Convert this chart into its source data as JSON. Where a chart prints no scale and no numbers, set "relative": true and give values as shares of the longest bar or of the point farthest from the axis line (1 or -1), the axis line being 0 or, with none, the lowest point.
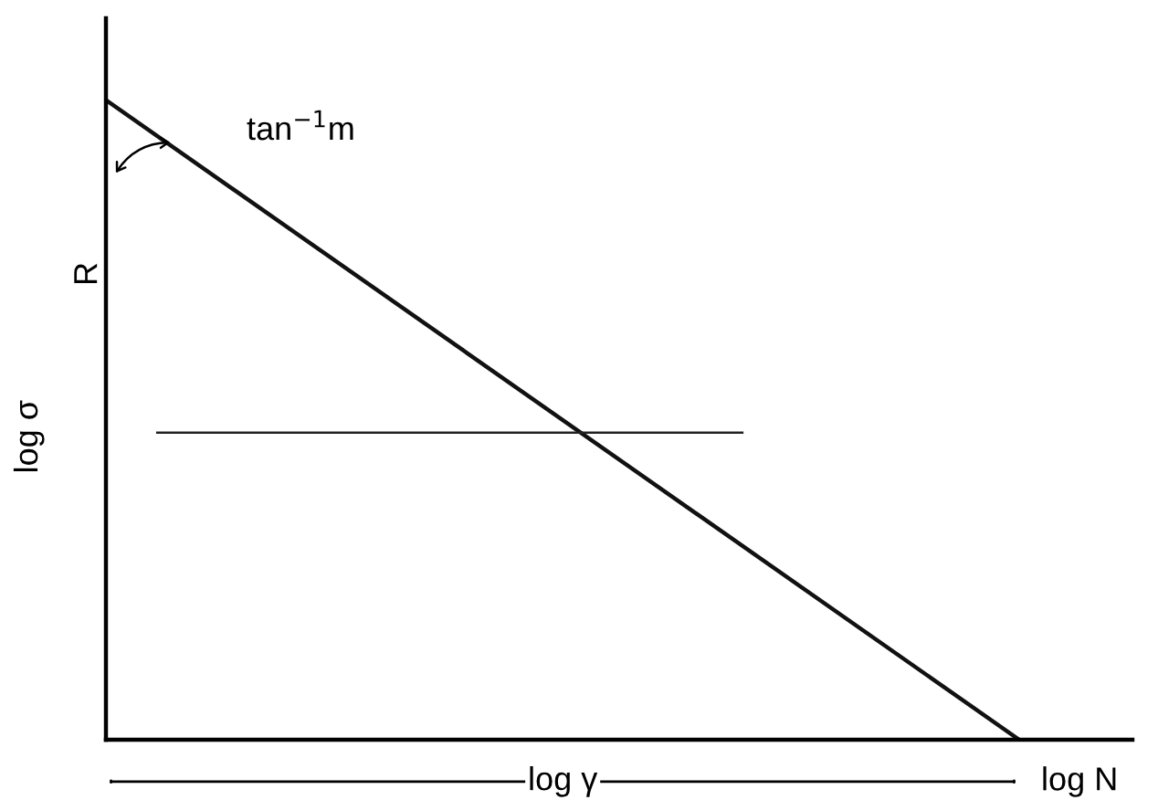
{
  "chart_data": {
    "type": "line",
    "relative": true,
    "legend": false,
    "marker": "none",
    "line_style": "solid",
    "xlabel": "log γ",
    "ylabel": "log σ",
    "categories": [
      null,
      null
    ],
    "series": [
      {
        "color": "#111111",
        "values": [
          1,
          0
        ]
      }
    ],
    "ref_lines": [
      {
        "axis": "y",
        "value": 0.48,
        "color": "#222222",
        "line_style": "solid"
      }
    ],
    "annotations": [
      "tan$^{−1}$m",
      "R",
      "log N"
    ]
  }
}
